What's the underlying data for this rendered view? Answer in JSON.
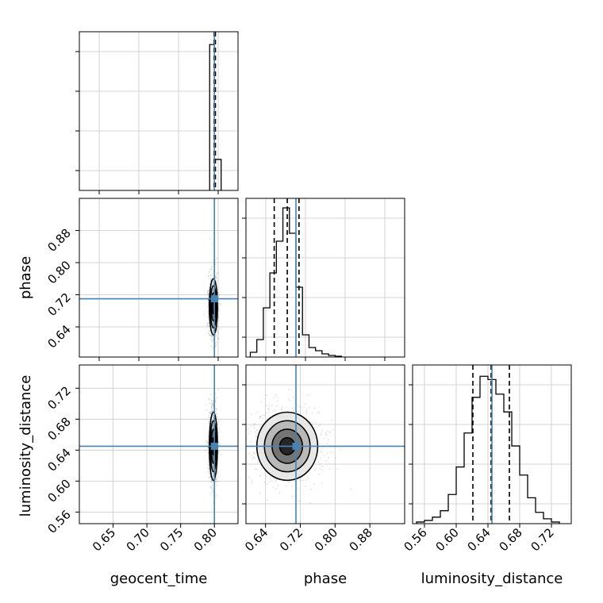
{
  "chart_data": {
    "type": "corner",
    "parameters": [
      "geocent_time",
      "phase",
      "luminosity_distance"
    ],
    "truths": {
      "geocent_time": 0.8,
      "phase": 0.71,
      "luminosity_distance": 0.645
    },
    "truth_color": "#4682b4",
    "grid": true,
    "panels": [
      {
        "id": "hist-geocent_time",
        "kind": "hist1d",
        "row": 0,
        "col": 0,
        "param": "geocent_time",
        "xlim": [
          0.6,
          0.835
        ],
        "yticks_labeled": false,
        "xticks_labeled": false,
        "bin_edges": [
          0.793,
          0.8,
          0.81
        ],
        "counts": [
          0.8,
          0.17
        ],
        "ylim": [
          0,
          0.87
        ],
        "quantiles": [
          0.7995,
          0.8005,
          0.8015
        ],
        "truth": 0.8
      },
      {
        "id": "hist-phase",
        "kind": "hist1d",
        "row": 1,
        "col": 1,
        "param": "phase",
        "xlim": [
          0.595,
          0.96
        ],
        "yticks_labeled": false,
        "xticks_labeled": false,
        "bin_edges": [
          0.605,
          0.62,
          0.635,
          0.65,
          0.665,
          0.68,
          0.695,
          0.71,
          0.725,
          0.74,
          0.755,
          0.77,
          0.785,
          0.8,
          0.815
        ],
        "counts": [
          0.03,
          0.11,
          0.31,
          0.53,
          0.73,
          0.94,
          0.78,
          0.44,
          0.14,
          0.06,
          0.04,
          0.02,
          0.01,
          0.005
        ],
        "ylim": [
          0,
          1.0
        ],
        "quantiles": [
          0.66,
          0.69,
          0.717
        ],
        "truth": 0.71
      },
      {
        "id": "hist-luminosity_distance",
        "kind": "hist1d",
        "row": 2,
        "col": 2,
        "param": "luminosity_distance",
        "xlim": [
          0.545,
          0.745
        ],
        "yticks_labeled": false,
        "xticks_labeled": true,
        "xticks": [
          0.56,
          0.6,
          0.64,
          0.68,
          0.72
        ],
        "xtick_labels": [
          "0.56",
          "0.60",
          "0.64",
          "0.68",
          "0.72"
        ],
        "bin_edges": [
          0.55,
          0.56,
          0.57,
          0.58,
          0.59,
          0.6,
          0.61,
          0.62,
          0.63,
          0.64,
          0.65,
          0.66,
          0.67,
          0.68,
          0.69,
          0.7,
          0.71,
          0.72,
          0.73
        ],
        "counts": [
          0.01,
          0.02,
          0.04,
          0.08,
          0.18,
          0.35,
          0.56,
          0.78,
          0.91,
          0.89,
          0.8,
          0.69,
          0.48,
          0.3,
          0.16,
          0.07,
          0.03,
          0.01
        ],
        "ylim": [
          0,
          0.98
        ],
        "quantiles": [
          0.621,
          0.644,
          0.667
        ],
        "truth": 0.645
      },
      {
        "id": "scatter-geocent_time-phase",
        "kind": "hist2d",
        "row": 1,
        "col": 0,
        "xparam": "geocent_time",
        "yparam": "phase",
        "xlim": [
          0.6,
          0.835
        ],
        "ylim": [
          0.565,
          0.96
        ],
        "xticks_labeled": false,
        "yticks_labeled": true,
        "yticks": [
          0.64,
          0.72,
          0.8,
          0.88
        ],
        "ytick_labels": [
          "0.64",
          "0.72",
          "0.80",
          "0.88"
        ],
        "center": [
          0.7985,
          0.69
        ],
        "spread": [
          0.003,
          0.035
        ],
        "truth": [
          0.8,
          0.71
        ]
      },
      {
        "id": "scatter-geocent_time-luminosity_distance",
        "kind": "hist2d",
        "row": 2,
        "col": 0,
        "xparam": "geocent_time",
        "yparam": "luminosity_distance",
        "xlim": [
          0.6,
          0.835
        ],
        "ylim": [
          0.545,
          0.75
        ],
        "xticks_labeled": true,
        "yticks_labeled": true,
        "xticks": [
          0.65,
          0.7,
          0.75,
          0.8
        ],
        "xtick_labels": [
          "0.65",
          "0.70",
          "0.75",
          "0.80"
        ],
        "yticks": [
          0.56,
          0.6,
          0.64,
          0.68,
          0.72
        ],
        "ytick_labels": [
          "0.56",
          "0.60",
          "0.64",
          "0.68",
          "0.72"
        ],
        "center": [
          0.7985,
          0.645
        ],
        "spread": [
          0.003,
          0.022
        ],
        "truth": [
          0.8,
          0.645
        ]
      },
      {
        "id": "scatter-phase-luminosity_distance",
        "kind": "hist2d",
        "row": 2,
        "col": 1,
        "xparam": "phase",
        "yparam": "luminosity_distance",
        "xlim": [
          0.595,
          0.96
        ],
        "ylim": [
          0.545,
          0.75
        ],
        "xticks_labeled": true,
        "yticks_labeled": false,
        "xticks": [
          0.64,
          0.72,
          0.8,
          0.88
        ],
        "xtick_labels": [
          "0.64",
          "0.72",
          "0.80",
          "0.88"
        ],
        "center": [
          0.69,
          0.645
        ],
        "spread": [
          0.035,
          0.022
        ],
        "truth": [
          0.71,
          0.645
        ]
      }
    ],
    "axis_labels": {
      "x": [
        "geocent_time",
        "phase",
        "luminosity_distance"
      ],
      "y": [
        "phase",
        "luminosity_distance"
      ]
    }
  }
}
